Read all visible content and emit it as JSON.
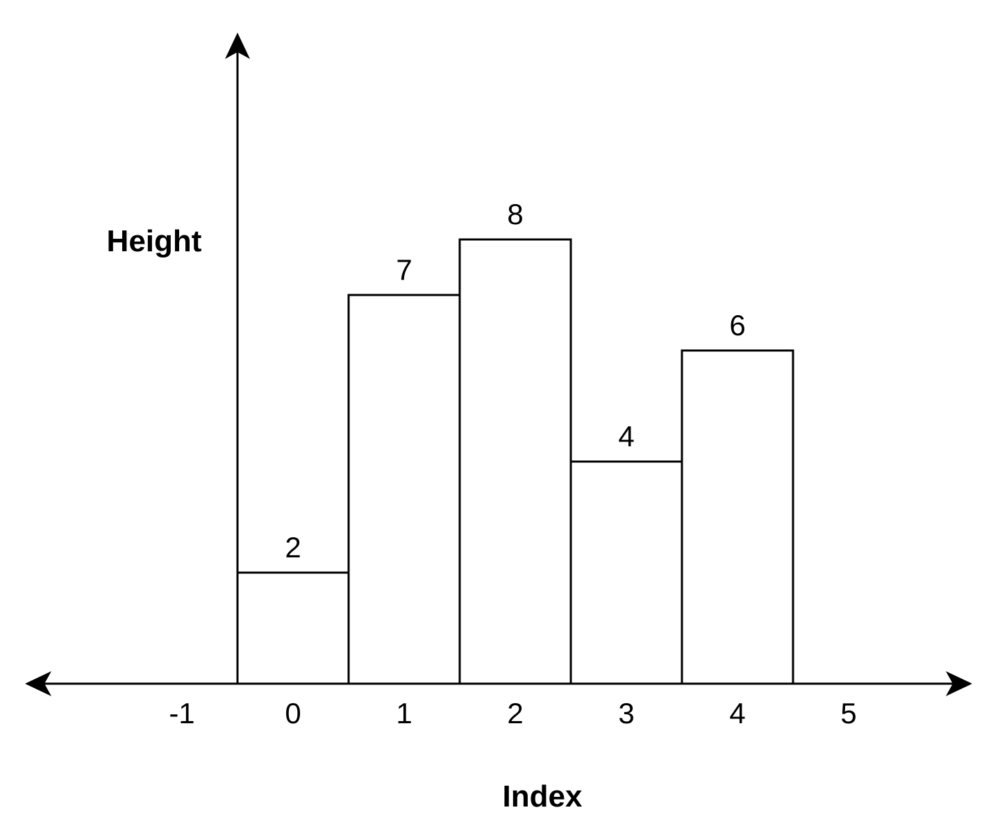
{
  "chart_data": {
    "type": "bar",
    "categories": [
      "0",
      "1",
      "2",
      "3",
      "4"
    ],
    "values": [
      2,
      7,
      8,
      4,
      6
    ],
    "x_ticks": [
      "-1",
      "0",
      "1",
      "2",
      "3",
      "4",
      "5"
    ],
    "xlabel": "Index",
    "ylabel": "Height",
    "ylim": [
      0,
      11.7
    ],
    "xlim": [
      -2.4,
      6.1
    ],
    "grid": false,
    "legend": "none",
    "bar_fill": "#ffffff",
    "line_color": "#000000"
  }
}
